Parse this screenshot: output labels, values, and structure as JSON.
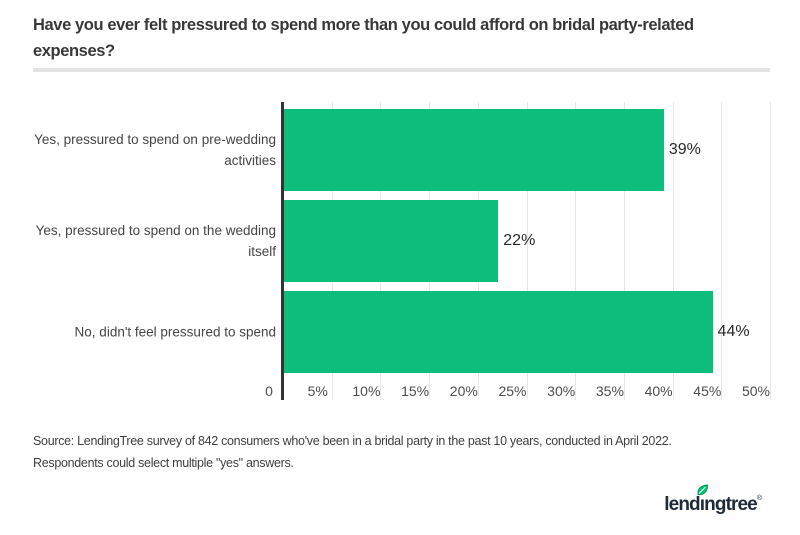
{
  "title_lines": [
    "Have you ever felt pressured to spend more than you could afford on bridal party-related",
    "expenses?"
  ],
  "chart_data": {
    "type": "bar",
    "orientation": "horizontal",
    "title": "Have you ever felt pressured to spend more than you could afford on bridal party-related expenses?",
    "categories": [
      "Yes, pressured to spend on pre-wedding activities",
      "Yes, pressured to spend on the wedding itself",
      "No, didn't feel pressured to spend"
    ],
    "category_lines": [
      [
        "Yes, pressured to spend on pre-wedding",
        "activities"
      ],
      [
        "Yes, pressured to spend on the wedding",
        "itself"
      ],
      [
        "No, didn't feel pressured to spend"
      ]
    ],
    "values": [
      39,
      22,
      44
    ],
    "value_labels": [
      "39%",
      "22%",
      "44%"
    ],
    "x_ticks": [
      {
        "value": 0,
        "label": "0"
      },
      {
        "value": 5,
        "label": "5%"
      },
      {
        "value": 10,
        "label": "10%"
      },
      {
        "value": 15,
        "label": "15%"
      },
      {
        "value": 20,
        "label": "20%"
      },
      {
        "value": 25,
        "label": "25%"
      },
      {
        "value": 30,
        "label": "30%"
      },
      {
        "value": 35,
        "label": "35%"
      },
      {
        "value": 40,
        "label": "40%"
      },
      {
        "value": 45,
        "label": "45%"
      },
      {
        "value": 50,
        "label": "50%"
      }
    ],
    "xlim": [
      0,
      50
    ],
    "grid": true,
    "legend": false,
    "bar_color": "#0dbd7c",
    "axis_color": "#333333",
    "gridline_color": "#e7e7e7"
  },
  "source_lines": [
    "Source: LendingTree survey of 842 consumers who've been in a bridal party in the past 10 years, conducted in April 2022.",
    "Respondents could select multiple \"yes\" answers."
  ],
  "logo": {
    "name": "lendingtree",
    "segments": [
      "lend",
      "ı",
      "ngtree"
    ],
    "registered": "®",
    "navy": "#1c2a39",
    "green": "#00c571"
  }
}
